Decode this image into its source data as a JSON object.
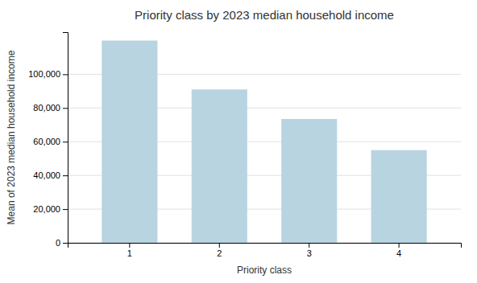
{
  "chart_data": {
    "type": "bar",
    "title": "Priority class by 2023 median household income",
    "xlabel": "Priority class",
    "ylabel": "Mean of 2023 median household income",
    "categories": [
      "1",
      "2",
      "3",
      "4"
    ],
    "values": [
      120000,
      91000,
      73500,
      55000
    ],
    "color": "#b8d4e0",
    "ylim": [
      0,
      125000
    ],
    "yticks": [
      0,
      {
        "value": 20000,
        "label": "20,000"
      },
      {
        "value": 40000,
        "label": "40,000"
      },
      {
        "value": 60000,
        "label": "60,000"
      },
      {
        "value": 80000,
        "label": "80,000"
      },
      {
        "value": 100000,
        "label": "100,000"
      }
    ],
    "grid": true
  }
}
